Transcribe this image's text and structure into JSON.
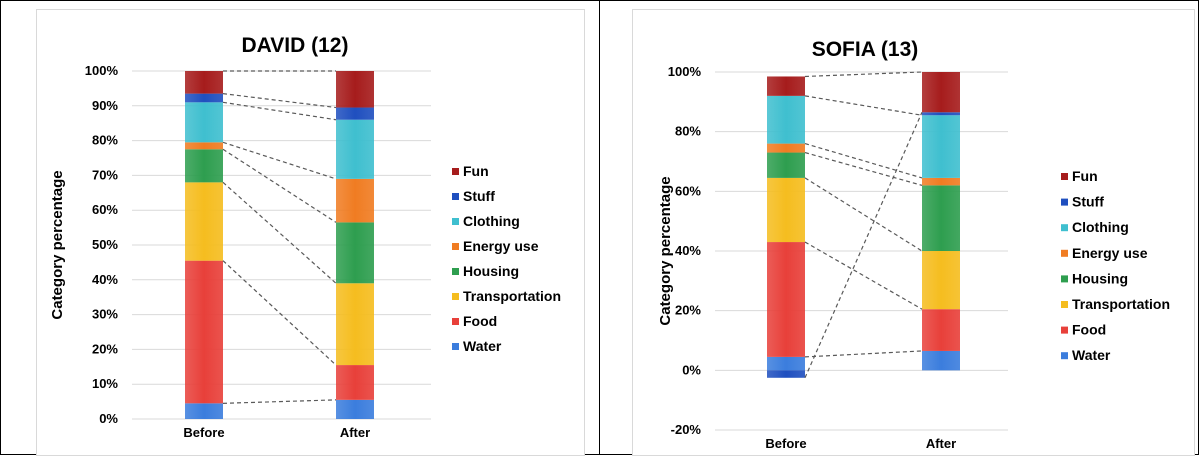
{
  "chart_data": [
    {
      "type": "bar",
      "stacked": true,
      "title": "DAVID (12)",
      "xlabel": "",
      "ylabel": "Category percentage",
      "categories": [
        "Before",
        "After"
      ],
      "ylim": [
        0,
        100
      ],
      "yticks": [
        "0%",
        "10%",
        "20%",
        "30%",
        "40%",
        "50%",
        "60%",
        "70%",
        "80%",
        "90%",
        "100%"
      ],
      "ytick_values": [
        0,
        10,
        20,
        30,
        40,
        50,
        60,
        70,
        80,
        90,
        100
      ],
      "legend_position": "right",
      "grid": true,
      "series": [
        {
          "name": "Water",
          "color": "#3b7ddd",
          "values": [
            4.5,
            5.5
          ]
        },
        {
          "name": "Food",
          "color": "#e8403a",
          "values": [
            41.0,
            10.0
          ]
        },
        {
          "name": "Transportation",
          "color": "#f5bd1f",
          "values": [
            22.5,
            23.5
          ]
        },
        {
          "name": "Housing",
          "color": "#2e9e4f",
          "values": [
            9.5,
            17.5
          ]
        },
        {
          "name": "Energy use",
          "color": "#f07c22",
          "values": [
            2.0,
            12.5
          ]
        },
        {
          "name": "Clothing",
          "color": "#3fbfcf",
          "values": [
            11.5,
            17.0
          ]
        },
        {
          "name": "Stuff",
          "color": "#1f4fbf",
          "values": [
            2.5,
            3.5
          ]
        },
        {
          "name": "Fun",
          "color": "#a61c1c",
          "values": [
            6.5,
            10.5
          ]
        }
      ]
    },
    {
      "type": "bar",
      "stacked": true,
      "title": "SOFIA (13)",
      "xlabel": "",
      "ylabel": "Category percentage",
      "categories": [
        "Before",
        "After"
      ],
      "ylim": [
        -20,
        100
      ],
      "yticks": [
        "-20%",
        "0%",
        "20%",
        "40%",
        "60%",
        "80%",
        "100%"
      ],
      "ytick_values": [
        -20,
        0,
        20,
        40,
        60,
        80,
        100
      ],
      "legend_position": "right",
      "grid": true,
      "series": [
        {
          "name": "Water",
          "color": "#3b7ddd",
          "values": [
            4.5,
            6.5
          ]
        },
        {
          "name": "Food",
          "color": "#e8403a",
          "values": [
            38.5,
            14.0
          ]
        },
        {
          "name": "Transportation",
          "color": "#f5bd1f",
          "values": [
            21.5,
            19.5
          ]
        },
        {
          "name": "Housing",
          "color": "#2e9e4f",
          "values": [
            8.5,
            22.0
          ]
        },
        {
          "name": "Energy use",
          "color": "#f07c22",
          "values": [
            3.0,
            2.5
          ]
        },
        {
          "name": "Clothing",
          "color": "#3fbfcf",
          "values": [
            16.0,
            21.0
          ]
        },
        {
          "name": "Stuff",
          "color": "#1f4fbf",
          "values": [
            -2.5,
            1.0
          ]
        },
        {
          "name": "Fun",
          "color": "#a61c1c",
          "values": [
            6.5,
            13.5
          ]
        }
      ]
    }
  ]
}
